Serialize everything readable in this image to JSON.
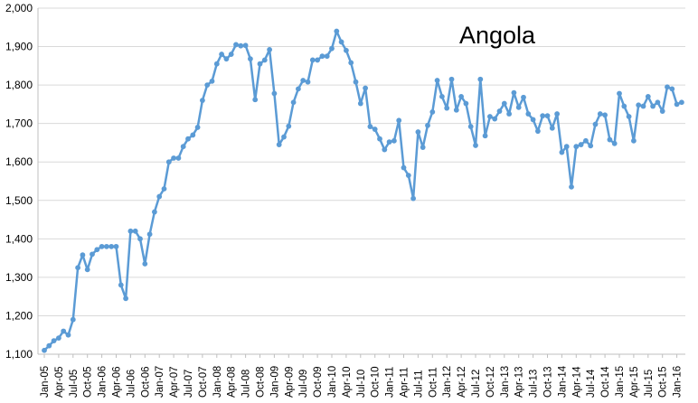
{
  "chart_data": {
    "type": "line",
    "title": "Angola",
    "xlabel": "",
    "ylabel": "",
    "ylim": [
      1100,
      2000
    ],
    "yticks": [
      1100,
      1200,
      1300,
      1400,
      1500,
      1600,
      1700,
      1800,
      1900,
      2000
    ],
    "ytick_labels": [
      "1,100",
      "1,200",
      "1,300",
      "1,400",
      "1,500",
      "1,600",
      "1,700",
      "1,800",
      "1,900",
      "2,000"
    ],
    "xtick_labels": [
      "Jan-05",
      "Apr-05",
      "Jul-05",
      "Oct-05",
      "Jan-06",
      "Apr-06",
      "Jul-06",
      "Oct-06",
      "Jan-07",
      "Apr-07",
      "Jul-07",
      "Oct-07",
      "Jan-08",
      "Apr-08",
      "Jul-08",
      "Oct-08",
      "Jan-09",
      "Apr-09",
      "Jul-09",
      "Oct-09",
      "Jan-10",
      "Apr-10",
      "Jul-10",
      "Oct-10",
      "Jan-11",
      "Apr-11",
      "Jul-11",
      "Oct-11",
      "Jan-12",
      "Apr-12",
      "Jul-12",
      "Oct-12",
      "Jan-13",
      "Apr-13",
      "Jul-13",
      "Oct-13",
      "Jan-14",
      "Apr-14",
      "Jul-14",
      "Oct-14",
      "Jan-15",
      "Apr-15",
      "Jul-15",
      "Oct-15",
      "Jan-16"
    ],
    "grid": true,
    "series_color": "#5b9bd5",
    "series": [
      {
        "values": [
          1110,
          1122,
          1135,
          1142,
          1160,
          1150,
          1190,
          1325,
          1358,
          1320,
          1360,
          1372,
          1380,
          1380,
          1380,
          1380,
          1280,
          1245,
          1420,
          1420,
          1400,
          1335,
          1412,
          1470,
          1510,
          1530,
          1600,
          1610,
          1610,
          1640,
          1660,
          1670,
          1690,
          1760,
          1800,
          1810,
          1855,
          1880,
          1868,
          1880,
          1905,
          1902,
          1903,
          1868,
          1762,
          1855,
          1865,
          1892,
          1778,
          1645,
          1665,
          1693,
          1755,
          1790,
          1812,
          1808,
          1865,
          1865,
          1875,
          1875,
          1895,
          1940,
          1912,
          1890,
          1858,
          1808,
          1752,
          1792,
          1692,
          1685,
          1660,
          1632,
          1652,
          1655,
          1708,
          1585,
          1565,
          1505,
          1678,
          1638,
          1695,
          1730,
          1812,
          1770,
          1740,
          1815,
          1735,
          1770,
          1752,
          1692,
          1643,
          1815,
          1668,
          1718,
          1712,
          1732,
          1752,
          1725,
          1780,
          1742,
          1768,
          1725,
          1710,
          1680,
          1720,
          1720,
          1688,
          1725,
          1625,
          1640,
          1535,
          1640,
          1645,
          1655,
          1642,
          1698,
          1725,
          1722,
          1658,
          1648,
          1778,
          1745,
          1718,
          1655,
          1748,
          1745,
          1770,
          1745,
          1755,
          1732,
          1795,
          1790,
          1750,
          1755
        ]
      }
    ]
  }
}
